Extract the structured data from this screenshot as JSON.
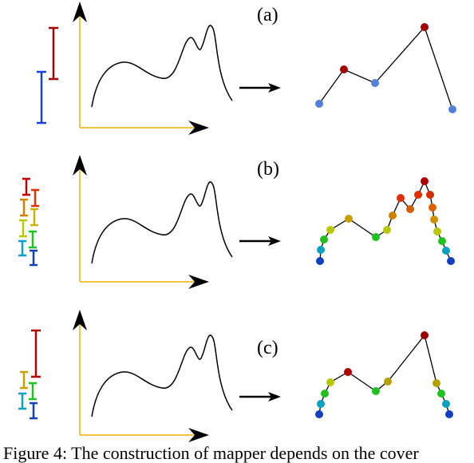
{
  "panels": [
    {
      "id": "a",
      "label": "(a)",
      "interval_colors": [
        "#a00000",
        "#1a3fe0"
      ]
    },
    {
      "id": "b",
      "label": "(b)",
      "interval_colors": [
        "#c00000",
        "#e03000",
        "#d08000",
        "#c8b400",
        "#b8c800",
        "#20c020",
        "#0aa0d0",
        "#1040c0"
      ]
    },
    {
      "id": "c",
      "label": "(c)",
      "interval_colors": [
        "#b00000",
        "#c8a000",
        "#20c020",
        "#0aa0c0",
        "#1040c0"
      ]
    }
  ],
  "caption": "Figure 4: The construction of mapper depends on the cover",
  "colors": {
    "axis": "#f5c242",
    "arrow": "#000000",
    "curve": "#000000"
  }
}
